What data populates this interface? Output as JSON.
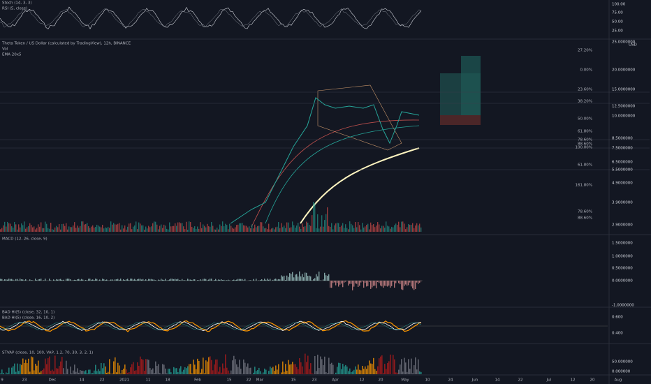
{
  "panels": {
    "stoch": "Stoch (14, 3, 3)",
    "rsi": "RSI (5, close)",
    "main": "Theta Token / US Dollar (calculated by TradingView), 12h, BINANCE",
    "vol": "Vol",
    "ema": "EMA 20x5",
    "macd": "MACD (12, 26, close, 9)",
    "bad1": "BAD HI(5) (close, 32, 10, 1)",
    "bad2": "BAD HI(5) (close, 16, 10, 2)",
    "stvap": "STVAP (close, 10, 100, VAP, 1.2, 70, 30, 3, 2, 1)"
  },
  "stoch_axis": [
    "100.00",
    "75.00",
    "50.00",
    "25.00"
  ],
  "currency": "USD",
  "price_axis": [
    "25.0000000",
    "20.0000000",
    "15.0000000",
    "12.5000000",
    "10.0000000",
    "8.5000000",
    "7.5000000",
    "6.5000000",
    "5.5000000",
    "4.9000000",
    "3.9000000",
    "2.9000000"
  ],
  "fib_labels": [
    "27.20%",
    "0.00%",
    "23.60%",
    "38.20%",
    "50.00%",
    "61.80%",
    "78.60%",
    "88.60%",
    "100.00%",
    "61.80%",
    "161.80%",
    "78.60%",
    "88.60%"
  ],
  "macd_axis": [
    "1.5000000",
    "1.0000000",
    "0.5000000",
    "0.0000000",
    "-1.0000000"
  ],
  "bad_axis": [
    "0.600",
    "0.400"
  ],
  "stvap_axis": [
    "50.000000",
    "0.000000"
  ],
  "dates": [
    "9",
    "23",
    "Dec",
    "14",
    "22",
    "2021",
    "11",
    "18",
    "Feb",
    "15",
    "22",
    "Mar",
    "15",
    "23",
    "Apr",
    "12",
    "20",
    "May",
    "10",
    "24",
    "Jun",
    "14",
    "22",
    "Jul",
    "12",
    "20",
    "Aug"
  ]
}
